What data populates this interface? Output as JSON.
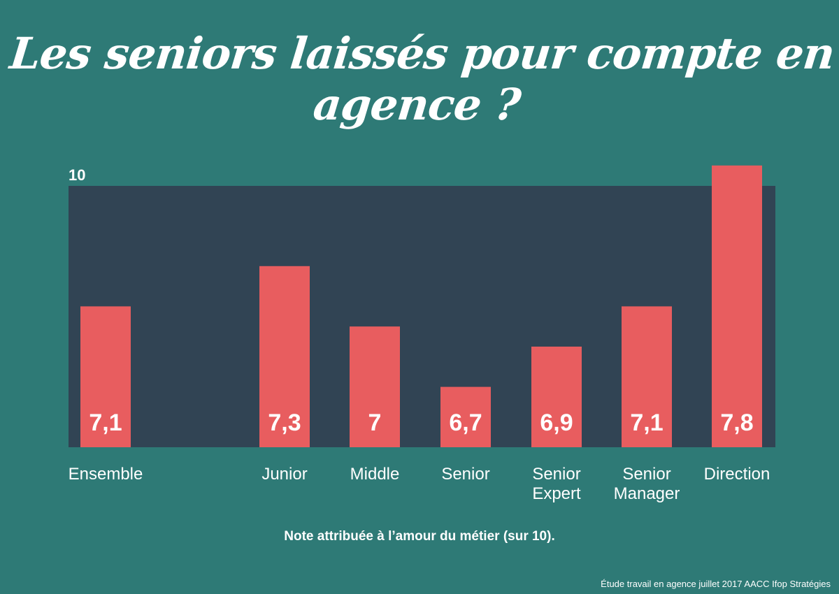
{
  "title": "Les seniors laissés pour compte en agence ?",
  "caption": "Note attribuée à l’amour du métier (sur 10).",
  "source": "Étude travail en agence juillet 2017 AACC Ifop Stratégies",
  "colors": {
    "background": "#2e7a76",
    "plot_background": "#314454",
    "bar": "#e85d5f",
    "text": "#ffffff"
  },
  "chart_data": {
    "type": "bar",
    "categories": [
      "Ensemble",
      "Junior",
      "Middle",
      "Senior",
      "Senior Expert",
      "Senior Manager",
      "Direction"
    ],
    "values": [
      7.1,
      7.3,
      7,
      6.7,
      6.9,
      7.1,
      7.8
    ],
    "value_labels": [
      "7,1",
      "7,3",
      "7",
      "6,7",
      "6,9",
      "7,1",
      "7,8"
    ],
    "y_max_label": "10",
    "ylim": [
      6.4,
      8.0
    ],
    "grid": false,
    "legend": "none"
  }
}
